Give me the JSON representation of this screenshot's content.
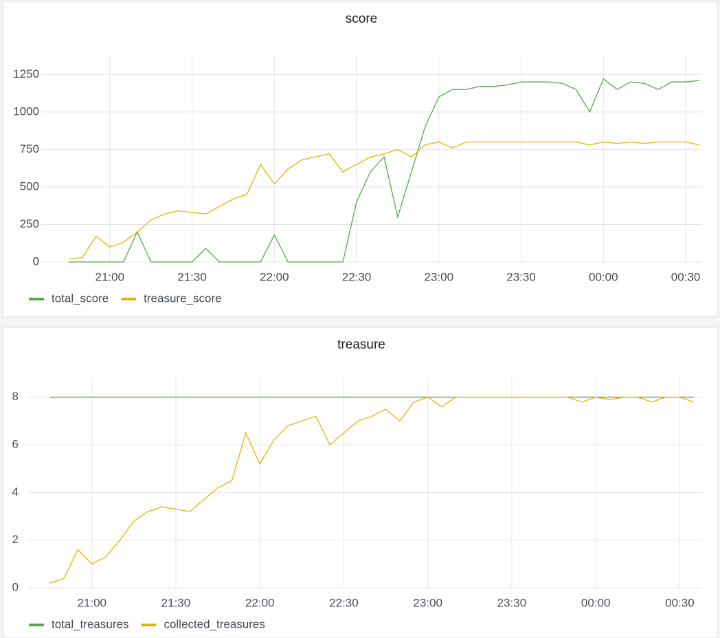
{
  "chart_data": [
    {
      "type": "line",
      "title": "score",
      "x": [
        "20:45",
        "20:50",
        "20:55",
        "21:00",
        "21:05",
        "21:10",
        "21:15",
        "21:20",
        "21:25",
        "21:30",
        "21:35",
        "21:40",
        "21:45",
        "21:50",
        "21:55",
        "22:00",
        "22:05",
        "22:10",
        "22:15",
        "22:20",
        "22:25",
        "22:30",
        "22:35",
        "22:40",
        "22:45",
        "22:50",
        "22:55",
        "23:00",
        "23:05",
        "23:10",
        "23:15",
        "23:20",
        "23:25",
        "23:30",
        "23:35",
        "23:40",
        "23:45",
        "23:50",
        "23:55",
        "00:00",
        "00:05",
        "00:10",
        "00:15",
        "00:20",
        "00:25",
        "00:30",
        "00:35"
      ],
      "series": [
        {
          "name": "total_score",
          "color": "#56a64b",
          "values": [
            0,
            0,
            0,
            0,
            0,
            200,
            0,
            0,
            0,
            0,
            90,
            0,
            0,
            0,
            0,
            180,
            0,
            0,
            0,
            0,
            0,
            400,
            600,
            700,
            300,
            600,
            900,
            1100,
            1150,
            1150,
            1170,
            1170,
            1180,
            1200,
            1200,
            1200,
            1190,
            1150,
            1000,
            1220,
            1150,
            1200,
            1190,
            1150,
            1200,
            1200,
            1210
          ]
        },
        {
          "name": "treasure_score",
          "color": "#e0b400",
          "values": [
            20,
            30,
            170,
            100,
            130,
            200,
            280,
            320,
            340,
            330,
            320,
            370,
            420,
            450,
            650,
            520,
            620,
            680,
            700,
            720,
            600,
            650,
            700,
            720,
            750,
            700,
            780,
            800,
            760,
            800,
            800,
            800,
            800,
            800,
            800,
            800,
            800,
            800,
            780,
            800,
            790,
            800,
            790,
            800,
            800,
            800,
            780
          ]
        }
      ],
      "xlim": [
        "20:35",
        "00:36"
      ],
      "xticks": [
        "21:00",
        "21:30",
        "22:00",
        "22:30",
        "23:00",
        "23:30",
        "00:00",
        "00:30"
      ],
      "ylim": [
        0,
        1375
      ],
      "yticks": [
        0,
        250,
        500,
        750,
        1000,
        1250
      ],
      "grid": true
    },
    {
      "type": "line",
      "title": "treasure",
      "x": [
        "20:45",
        "20:50",
        "20:55",
        "21:00",
        "21:05",
        "21:10",
        "21:15",
        "21:20",
        "21:25",
        "21:30",
        "21:35",
        "21:40",
        "21:45",
        "21:50",
        "21:55",
        "22:00",
        "22:05",
        "22:10",
        "22:15",
        "22:20",
        "22:25",
        "22:30",
        "22:35",
        "22:40",
        "22:45",
        "22:50",
        "22:55",
        "23:00",
        "23:05",
        "23:10",
        "23:15",
        "23:20",
        "23:25",
        "23:30",
        "23:35",
        "23:40",
        "23:45",
        "23:50",
        "23:55",
        "00:00",
        "00:05",
        "00:10",
        "00:15",
        "00:20",
        "00:25",
        "00:30",
        "00:35"
      ],
      "series": [
        {
          "name": "total_treasures",
          "color": "#56a64b",
          "values": [
            8,
            8,
            8,
            8,
            8,
            8,
            8,
            8,
            8,
            8,
            8,
            8,
            8,
            8,
            8,
            8,
            8,
            8,
            8,
            8,
            8,
            8,
            8,
            8,
            8,
            8,
            8,
            8,
            8,
            8,
            8,
            8,
            8,
            8,
            8,
            8,
            8,
            8,
            8,
            8,
            8,
            8,
            8,
            8,
            8,
            8,
            8
          ]
        },
        {
          "name": "collected_treasures",
          "color": "#e0b400",
          "values": [
            0.2,
            0.4,
            1.6,
            1.0,
            1.3,
            2.0,
            2.8,
            3.2,
            3.4,
            3.3,
            3.2,
            3.7,
            4.2,
            4.5,
            6.5,
            5.2,
            6.2,
            6.8,
            7.0,
            7.2,
            6.0,
            6.5,
            7.0,
            7.2,
            7.5,
            7.0,
            7.8,
            8,
            7.6,
            8,
            8,
            8,
            8,
            8,
            8,
            8,
            8,
            8,
            7.8,
            8,
            7.9,
            8,
            8,
            7.8,
            8,
            8,
            7.8
          ]
        }
      ],
      "xlim": [
        "20:37",
        "00:38"
      ],
      "xticks": [
        "21:00",
        "21:30",
        "22:00",
        "22:30",
        "23:00",
        "23:30",
        "00:00",
        "00:30"
      ],
      "ylim": [
        0,
        8.8
      ],
      "yticks": [
        0,
        2,
        4,
        6,
        8
      ],
      "grid": true
    }
  ]
}
